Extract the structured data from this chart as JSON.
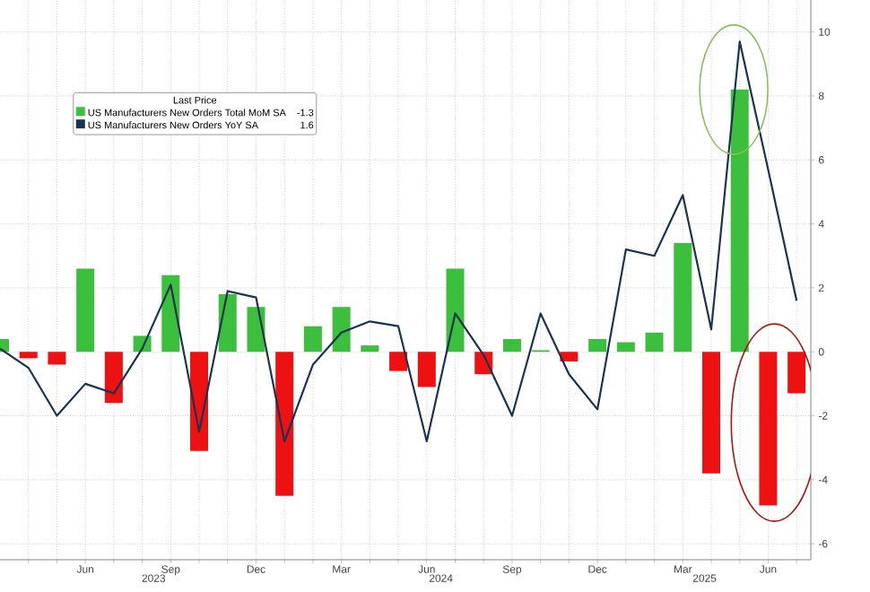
{
  "chart_data": {
    "type": "bar",
    "legend_title": "Last Price",
    "x": [
      "2023-03",
      "2023-04",
      "2023-05",
      "2023-06",
      "2023-07",
      "2023-08",
      "2023-09",
      "2023-10",
      "2023-11",
      "2023-12",
      "2024-01",
      "2024-02",
      "2024-03",
      "2024-04",
      "2024-05",
      "2024-06",
      "2024-07",
      "2024-08",
      "2024-09",
      "2024-10",
      "2024-11",
      "2024-12",
      "2025-01",
      "2025-02",
      "2025-03",
      "2025-04",
      "2025-05",
      "2025-06",
      "2025-07"
    ],
    "series": [
      {
        "name": "US Manufacturers New Orders Total MoM SA",
        "color": "#3cbf3c",
        "colors": [
          "#3cbf3c",
          "#ee1111",
          "#ee1111",
          "#3cbf3c",
          "#ee1111",
          "#3cbf3c",
          "#3cbf3c",
          "#ee1111",
          "#3cbf3c",
          "#3cbf3c",
          "#ee1111",
          "#3cbf3c",
          "#3cbf3c",
          "#3cbf3c",
          "#ee1111",
          "#ee1111",
          "#3cbf3c",
          "#ee1111",
          "#3cbf3c",
          "#3cbf3c",
          "#ee1111",
          "#3cbf3c",
          "#3cbf3c",
          "#3cbf3c",
          "#3cbf3c",
          "#ee1111",
          "#3cbf3c",
          "#ee1111",
          "#ee1111"
        ],
        "values": [
          0.4,
          -0.2,
          -0.4,
          2.6,
          -1.6,
          0.5,
          2.4,
          -3.1,
          1.8,
          1.4,
          -4.5,
          0.8,
          1.4,
          0.2,
          -0.6,
          -1.1,
          2.6,
          -0.7,
          0.4,
          0.05,
          -0.3,
          0.4,
          0.3,
          0.6,
          3.4,
          -3.8,
          8.2,
          -4.8,
          -1.3
        ]
      },
      {
        "name": "US Manufacturers New Orders YoY SA",
        "type": "line",
        "color": "#1a3350",
        "values": [
          0.1,
          -0.5,
          -2.0,
          -1.0,
          -1.3,
          0.1,
          2.1,
          -2.5,
          1.9,
          1.7,
          -2.8,
          -0.4,
          0.6,
          0.95,
          0.8,
          -2.8,
          1.2,
          -0.1,
          -2.0,
          1.2,
          -0.7,
          -1.8,
          3.2,
          3.0,
          4.9,
          0.7,
          9.7,
          5.7,
          1.6
        ]
      }
    ],
    "annotations": [
      "-1.3",
      "1.6"
    ],
    "xlim": [
      "2023-03-01",
      "2025-07-16"
    ],
    "xticks": [
      {
        "value": "2023-04",
        "label": null
      },
      {
        "value": "2023-05",
        "label": null
      },
      {
        "value": "2023-06",
        "label": "Jun"
      },
      {
        "value": "2023-07",
        "label": null
      },
      {
        "value": "2023-08",
        "label": null
      },
      {
        "value": "2023-09",
        "label": "Sep"
      },
      {
        "value": "2023-10",
        "label": null
      },
      {
        "value": "2023-11",
        "label": null
      },
      {
        "value": "2023-12",
        "label": "Dec"
      },
      {
        "value": "2024-01",
        "label": null
      },
      {
        "value": "2024-02",
        "label": null
      },
      {
        "value": "2024-03",
        "label": "Mar"
      },
      {
        "value": "2024-04",
        "label": null
      },
      {
        "value": "2024-05",
        "label": null
      },
      {
        "value": "2024-06",
        "label": "Jun"
      },
      {
        "value": "2024-07",
        "label": null
      },
      {
        "value": "2024-08",
        "label": null
      },
      {
        "value": "2024-09",
        "label": "Sep"
      },
      {
        "value": "2024-10",
        "label": null
      },
      {
        "value": "2024-11",
        "label": null
      },
      {
        "value": "2024-12",
        "label": "Dec"
      },
      {
        "value": "2025-01",
        "label": null
      },
      {
        "value": "2025-02",
        "label": null
      },
      {
        "value": "2025-03",
        "label": "Mar"
      },
      {
        "value": "2025-04",
        "label": null
      },
      {
        "value": "2025-05",
        "label": null
      },
      {
        "value": "2025-06",
        "label": "Jun"
      },
      {
        "value": "2025-07",
        "label": null
      }
    ],
    "x2lim": [
      "2023-03-01",
      "2025-07-16"
    ],
    "x2ticks": [
      {
        "value": "2023-08-13",
        "label": "2023"
      },
      {
        "value": "2024-06-16",
        "label": "2024"
      },
      {
        "value": "2025-03-24",
        "label": "2025"
      }
    ],
    "ylim": [
      -6.5,
      11
    ],
    "yticks": [
      -6,
      -4,
      -2,
      0,
      2,
      4,
      6,
      8,
      10
    ],
    "grid": true,
    "legend": "top left"
  }
}
